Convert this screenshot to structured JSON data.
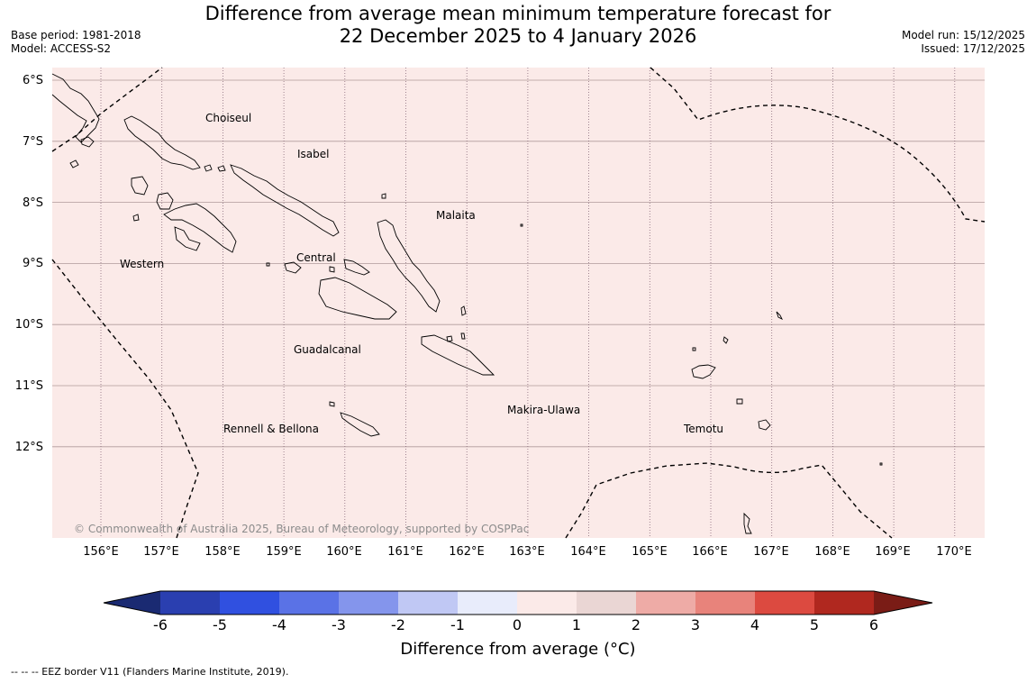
{
  "header": {
    "title_line1": "Difference from average mean minimum temperature forecast for",
    "title_line2": "22 December 2025 to 4 January 2026",
    "base_period": "Base period: 1981-2018",
    "model": "Model: ACCESS-S2",
    "model_run": "Model run: 15/12/2025",
    "issued": "Issued: 17/12/2025"
  },
  "map": {
    "fill_color": "#fbeae8",
    "latitude_labels": [
      "6°S",
      "7°S",
      "8°S",
      "9°S",
      "10°S",
      "11°S",
      "12°S"
    ],
    "longitude_labels": [
      "156°E",
      "157°E",
      "158°E",
      "159°E",
      "160°E",
      "161°E",
      "162°E",
      "163°E",
      "164°E",
      "165°E",
      "166°E",
      "167°E",
      "168°E",
      "169°E",
      "170°E"
    ],
    "region_labels": [
      "Choiseul",
      "Isabel",
      "Malaita",
      "Western",
      "Central",
      "Guadalcanal",
      "Makira-Ulawa",
      "Rennell & Bellona",
      "Temotu"
    ],
    "copyright": "© Commonwealth of Australia 2025, Bureau of Meteorology, supported by COSPPac"
  },
  "colorbar": {
    "ticks": [
      "-6",
      "-5",
      "-4",
      "-3",
      "-2",
      "-1",
      "0",
      "1",
      "2",
      "3",
      "4",
      "5",
      "6"
    ],
    "colors": [
      "#1a2a72",
      "#2a3fb0",
      "#3050e0",
      "#5a72e6",
      "#8495ec",
      "#c0c8f4",
      "#e8ecfb",
      "#fbeae8",
      "#ead6d4",
      "#eeaba6",
      "#e8837b",
      "#dc4a40",
      "#b0281f",
      "#7a1c16"
    ],
    "title": "Difference from average (°C)"
  },
  "legend": {
    "eez_text": "--  --  -- EEZ border V11 (Flanders Marine Institute, 2019)."
  }
}
